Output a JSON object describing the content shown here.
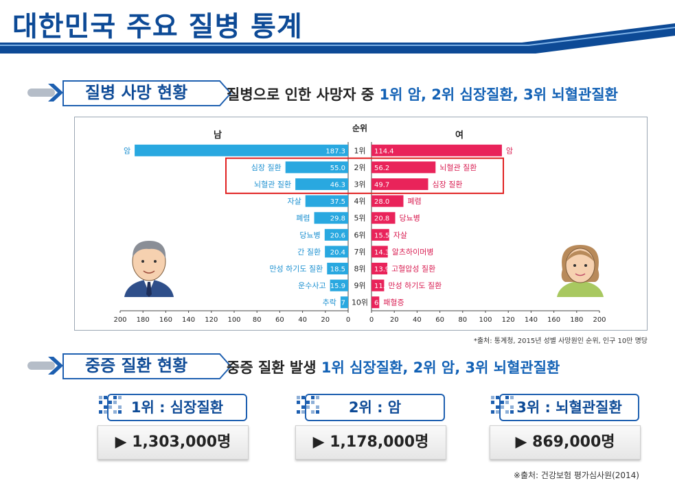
{
  "title": "대한민국 주요 질병 통계",
  "section1": {
    "label": "질병 사망 현황",
    "desc_prefix": "질병으로 인한 사망자 중 ",
    "desc_highlight": "1위 암, 2위 심장질환, 3위 뇌혈관질환"
  },
  "section2": {
    "label": "중증 질환 현황",
    "desc_prefix": "중증 질환 발생 ",
    "desc_highlight": "1위 심장질환, 2위 암, 3위 뇌혈관질환"
  },
  "chart_data": {
    "type": "bar",
    "orientation": "horizontal-butterfly",
    "left_header": "남",
    "center_header": "순위",
    "right_header": "여",
    "ranks": [
      "1위",
      "2위",
      "3위",
      "4위",
      "5위",
      "6위",
      "7위",
      "8위",
      "9위",
      "10위"
    ],
    "series": [
      {
        "name": "남",
        "categories": [
          "암",
          "심장 질환",
          "뇌혈관 질환",
          "자살",
          "폐렴",
          "당뇨병",
          "간 질환",
          "만성 하기도 질환",
          "운수사고",
          "추락"
        ],
        "values": [
          187.3,
          55.0,
          46.3,
          37.5,
          29.8,
          20.6,
          20.4,
          18.5,
          15.9,
          6.7
        ],
        "value_labels": [
          "187.3",
          "55.0",
          "46.3",
          "37.5",
          "29.8",
          "20.6",
          "20.4",
          "18.5",
          "15.9",
          "6.7"
        ],
        "color": "#29a8e0"
      },
      {
        "name": "여",
        "categories": [
          "암",
          "뇌혈관 질환",
          "심장 질환",
          "폐렴",
          "당뇨병",
          "자살",
          "알츠하이머병",
          "고혈압성 질환",
          "만성 하기도 질환",
          "패혈증"
        ],
        "values": [
          114.4,
          56.2,
          49.7,
          28.0,
          20.8,
          15.5,
          14.3,
          13.9,
          11.1,
          6.8
        ],
        "value_labels": [
          "114.4",
          "56.2",
          "49.7",
          "28.0",
          "20.8",
          "15.5",
          "14.3",
          "13.9",
          "11.1",
          "6.8"
        ],
        "color": "#e9235a"
      }
    ],
    "left_ticks": [
      "200",
      "180",
      "160",
      "140",
      "120",
      "100",
      "80",
      "60",
      "40",
      "20",
      "0"
    ],
    "right_ticks": [
      "0",
      "20",
      "40",
      "60",
      "80",
      "100",
      "120",
      "140",
      "160",
      "180",
      "200"
    ],
    "xlim": [
      0,
      200
    ],
    "highlight_ranks": [
      2,
      3
    ],
    "highlight_color": "#e02020"
  },
  "source1": "*출처: 통계청, 2015년 성별 사망원인 순위, 인구 10만 명당",
  "ranking_cards": [
    {
      "rank_label": "1위 : 심장질환",
      "value": "▶ 1,303,000명"
    },
    {
      "rank_label": "2위 : 암",
      "value": "▶ 1,178,000명"
    },
    {
      "rank_label": "3위 : 뇌혈관질환",
      "value": "▶ 869,000명"
    }
  ],
  "source2": "※출처: 건강보험 평가심사원(2014)",
  "colors": {
    "title": "#0d4a96",
    "accent": "#1261b5",
    "male_bar": "#29a8e0",
    "female_bar": "#e9235a"
  }
}
